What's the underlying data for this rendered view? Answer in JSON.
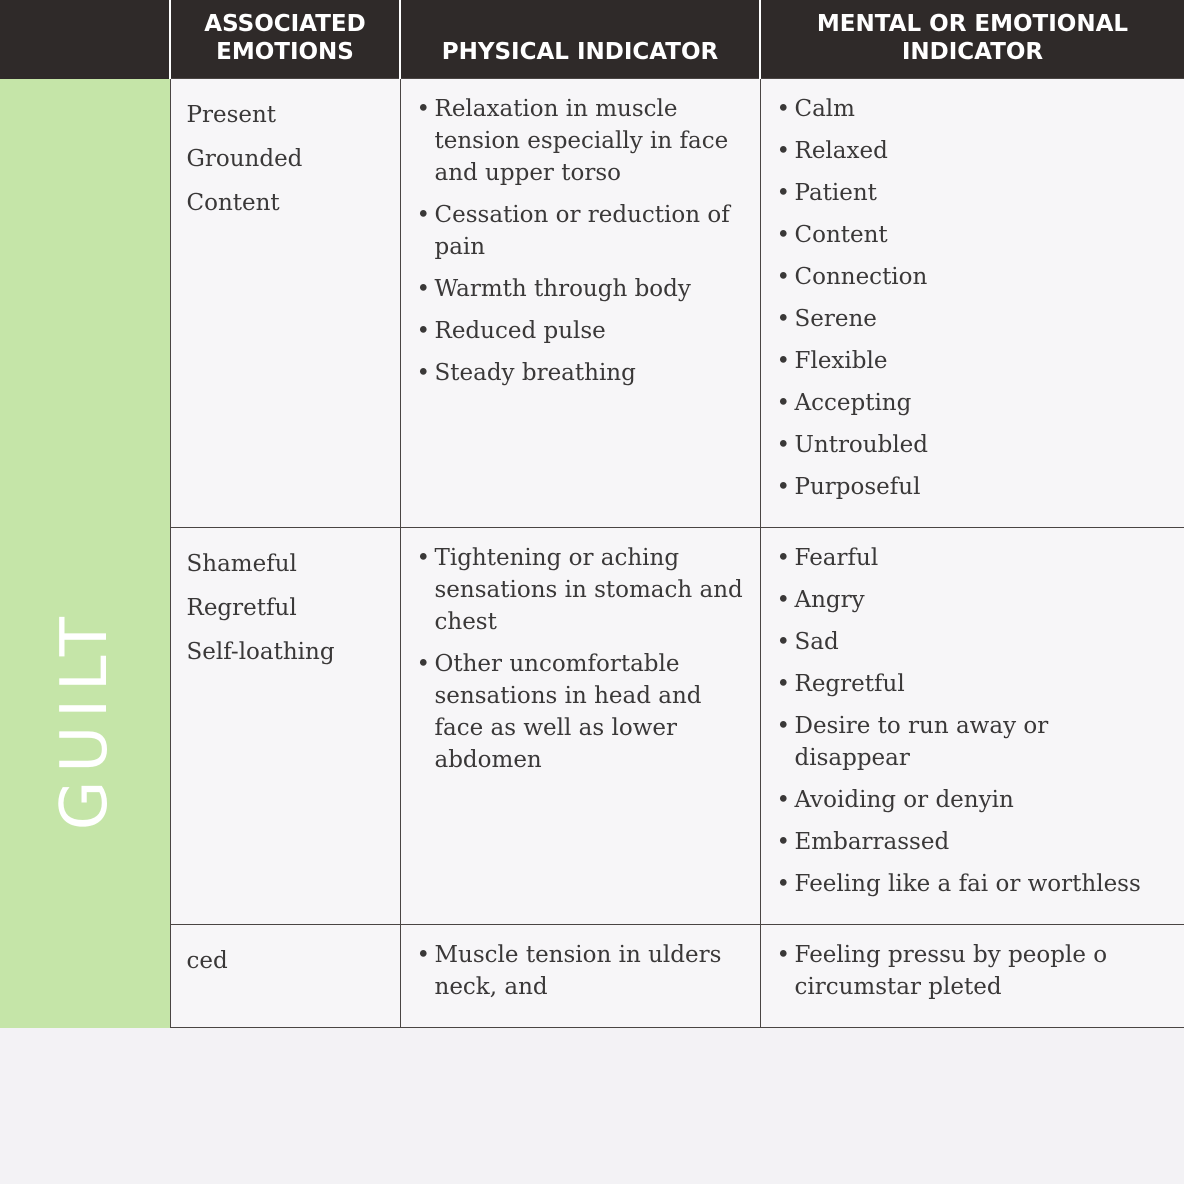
{
  "headers": [
    "ASSOCIATED EMOTIONS",
    "PHYSICAL INDICATOR",
    "MENTAL OR EMOTIONAL INDICATOR"
  ],
  "rows": [
    {
      "label": "",
      "associated": [
        "Present",
        "Grounded",
        "Content"
      ],
      "physical": [
        "Relaxation in muscle tension especially in face and upper torso",
        "Cessation or reduction of pain",
        "Warmth through body",
        "Reduced pulse",
        "Steady breathing"
      ],
      "mental": [
        "Calm",
        "Relaxed",
        "Patient",
        "Content",
        "Connection",
        "Serene",
        "Flexible",
        "Accepting",
        "Untroubled",
        "Purposeful"
      ]
    },
    {
      "label": "GUILT",
      "associated": [
        "Shameful",
        "Regretful",
        "Self-loathing"
      ],
      "physical": [
        "Tightening or aching sensations in stomach and chest",
        "Other uncomfortable sensations in head and face as well as lower abdomen"
      ],
      "mental": [
        "Fearful",
        "Angry",
        "Sad",
        "Regretful",
        "Desire to run away or disappear",
        "Avoiding or denyin",
        "Embarrassed",
        "Feeling like a fai or worthless"
      ]
    },
    {
      "label": "",
      "associated": [
        "ced"
      ],
      "physical": [
        "Muscle tension in ulders neck, and"
      ],
      "mental": [
        "Feeling pressu by people o circumstar pleted"
      ]
    }
  ],
  "colors": {
    "header": "#2f2a29",
    "label_green": "#c5e5a8"
  }
}
